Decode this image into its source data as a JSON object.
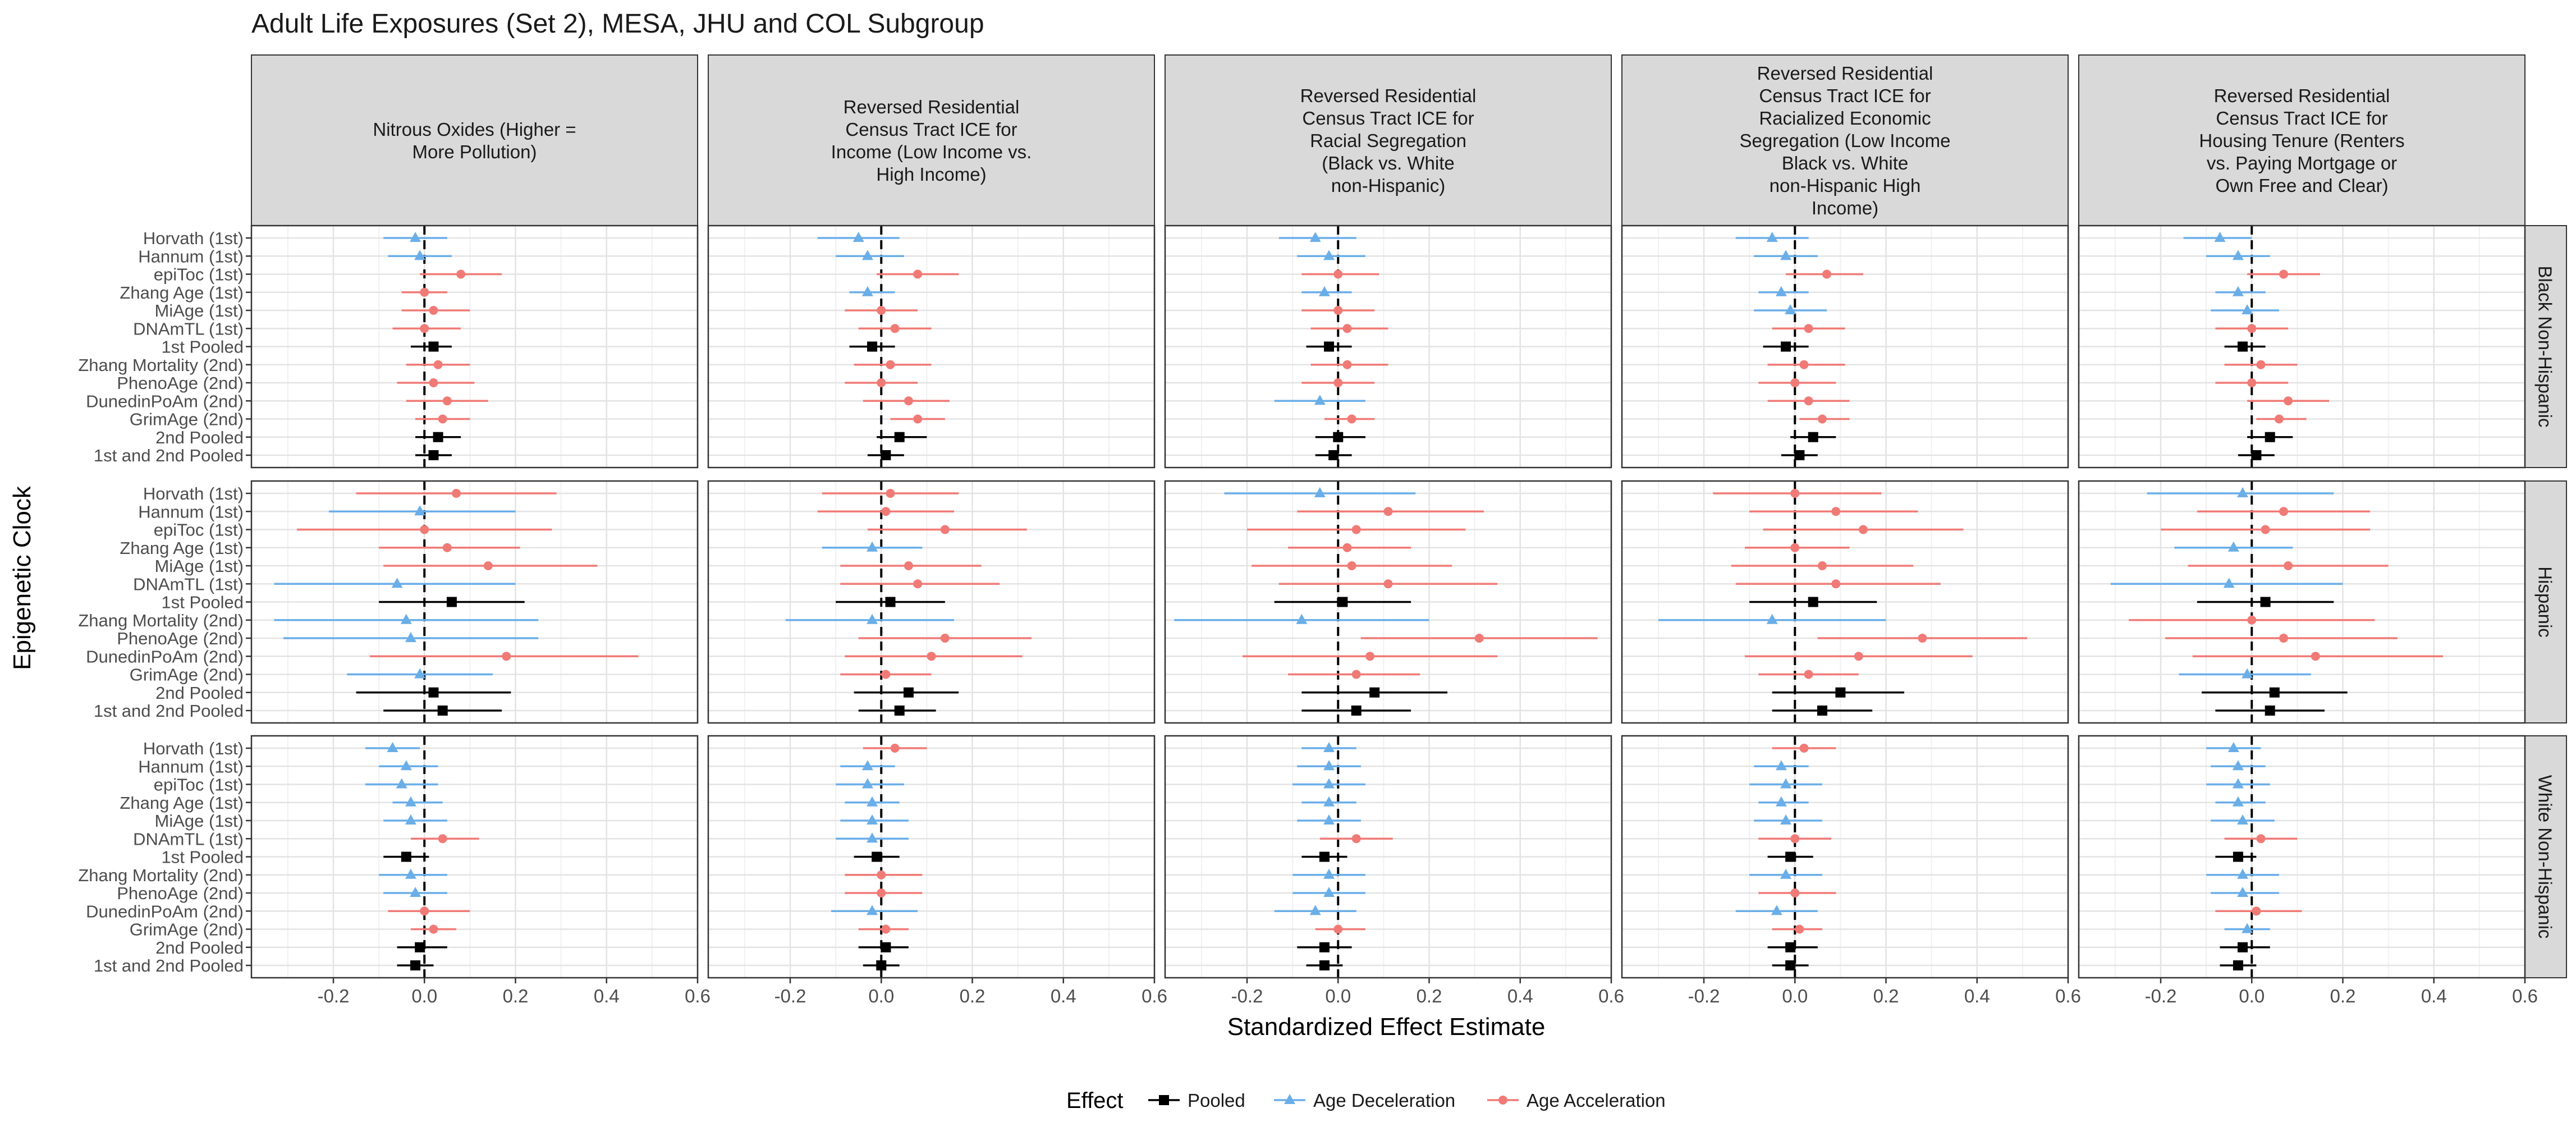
{
  "chart_data": {
    "type": "scatter",
    "title": "Adult Life Exposures (Set 2), MESA, JHU and COL Subgroup",
    "xlabel": "Standardized Effect Estimate",
    "ylabel": "Epigenetic Clock",
    "xlim": [
      -0.38,
      0.6
    ],
    "x_ticks": [
      -0.2,
      0.0,
      0.2,
      0.4,
      0.6
    ],
    "x_tick_labels": [
      "-0.2",
      "0.0",
      "0.2",
      "0.4",
      "0.6"
    ],
    "reference_line": 0,
    "grid": true,
    "legend": {
      "title": "Effect",
      "position": "bottom",
      "entries": [
        {
          "label": "Pooled",
          "color": "#000000",
          "shape": "square"
        },
        {
          "label": "Age Deceleration",
          "color": "#6aaee8",
          "shape": "triangle"
        },
        {
          "label": "Age Acceleration",
          "color": "#f07a76",
          "shape": "circle"
        }
      ]
    },
    "colors": {
      "Pooled": "#000000",
      "Age Deceleration": "#6aaee8",
      "Age Acceleration": "#f07a76"
    },
    "categories": [
      "Horvath (1st)",
      "Hannum (1st)",
      "epiToc (1st)",
      "Zhang Age (1st)",
      "MiAge (1st)",
      "DNAmTL (1st)",
      "1st Pooled",
      "Zhang Mortality (2nd)",
      "PhenoAge (2nd)",
      "DunedinPoAm (2nd)",
      "GrimAge (2nd)",
      "2nd Pooled",
      "1st and 2nd Pooled"
    ],
    "facet_columns": [
      {
        "lines": [
          "Nitrous Oxides (Higher =",
          "More Pollution)"
        ]
      },
      {
        "lines": [
          "Reversed Residential",
          "Census Tract ICE for",
          "Income (Low Income vs.",
          "High Income)"
        ]
      },
      {
        "lines": [
          "Reversed Residential",
          "Census Tract ICE for",
          "Racial Segregation",
          "(Black vs. White",
          "non-Hispanic)"
        ]
      },
      {
        "lines": [
          "Reversed Residential",
          "Census Tract ICE for",
          "Racialized Economic",
          "Segregation (Low Income",
          "Black vs. White",
          "non-Hispanic High",
          "Income)"
        ]
      },
      {
        "lines": [
          "Reversed Residential",
          "Census Tract ICE for",
          "Housing Tenure (Renters",
          "vs. Paying Mortgage or",
          "Own Free and Clear)"
        ]
      }
    ],
    "facet_rows": [
      "Black Non-Hispanic",
      "Hispanic",
      "White Non-Hispanic"
    ],
    "panels": [
      [
        [
          [
            -0.02,
            -0.09,
            0.05
          ],
          [
            -0.01,
            -0.08,
            0.06
          ],
          [
            0.08,
            -0.01,
            0.17
          ],
          [
            0.0,
            -0.05,
            0.05
          ],
          [
            0.02,
            -0.05,
            0.1
          ],
          [
            0.0,
            -0.07,
            0.08
          ],
          [
            0.02,
            -0.03,
            0.06
          ],
          [
            0.03,
            -0.04,
            0.1
          ],
          [
            0.02,
            -0.06,
            0.11
          ],
          [
            0.05,
            -0.04,
            0.14
          ],
          [
            0.04,
            -0.02,
            0.1
          ],
          [
            0.03,
            -0.02,
            0.08
          ],
          [
            0.02,
            -0.02,
            0.06
          ]
        ],
        [
          [
            0.07,
            -0.15,
            0.29
          ],
          [
            -0.01,
            -0.21,
            0.2
          ],
          [
            0.0,
            -0.28,
            0.28
          ],
          [
            0.05,
            -0.1,
            0.21
          ],
          [
            0.14,
            -0.09,
            0.38
          ],
          [
            -0.06,
            -0.33,
            0.2
          ],
          [
            0.06,
            -0.1,
            0.22
          ],
          [
            -0.04,
            -0.33,
            0.25
          ],
          [
            -0.03,
            -0.31,
            0.25
          ],
          [
            0.18,
            -0.12,
            0.47
          ],
          [
            -0.01,
            -0.17,
            0.15
          ],
          [
            0.02,
            -0.15,
            0.19
          ],
          [
            0.04,
            -0.09,
            0.17
          ]
        ],
        [
          [
            -0.07,
            -0.13,
            -0.01
          ],
          [
            -0.04,
            -0.1,
            0.03
          ],
          [
            -0.05,
            -0.13,
            0.03
          ],
          [
            -0.03,
            -0.07,
            0.04
          ],
          [
            -0.03,
            -0.09,
            0.05
          ],
          [
            0.04,
            -0.03,
            0.12
          ],
          [
            -0.04,
            -0.09,
            0.01
          ],
          [
            -0.03,
            -0.1,
            0.05
          ],
          [
            -0.02,
            -0.09,
            0.05
          ],
          [
            0.0,
            -0.08,
            0.1
          ],
          [
            0.02,
            -0.03,
            0.07
          ],
          [
            -0.01,
            -0.06,
            0.05
          ],
          [
            -0.02,
            -0.06,
            0.02
          ]
        ]
      ],
      [
        [
          [
            -0.05,
            -0.14,
            0.04
          ],
          [
            -0.03,
            -0.1,
            0.05
          ],
          [
            0.08,
            -0.01,
            0.17
          ],
          [
            -0.03,
            -0.07,
            0.03
          ],
          [
            0.0,
            -0.08,
            0.08
          ],
          [
            0.03,
            -0.05,
            0.11
          ],
          [
            -0.02,
            -0.07,
            0.03
          ],
          [
            0.02,
            -0.06,
            0.11
          ],
          [
            0.0,
            -0.08,
            0.08
          ],
          [
            0.06,
            -0.04,
            0.15
          ],
          [
            0.08,
            0.02,
            0.14
          ],
          [
            0.04,
            -0.01,
            0.1
          ],
          [
            0.01,
            -0.03,
            0.05
          ]
        ],
        [
          [
            0.02,
            -0.13,
            0.17
          ],
          [
            0.01,
            -0.14,
            0.16
          ],
          [
            0.14,
            -0.03,
            0.32
          ],
          [
            -0.02,
            -0.13,
            0.09
          ],
          [
            0.06,
            -0.09,
            0.22
          ],
          [
            0.08,
            -0.09,
            0.26
          ],
          [
            0.02,
            -0.1,
            0.14
          ],
          [
            -0.02,
            -0.21,
            0.16
          ],
          [
            0.14,
            -0.05,
            0.33
          ],
          [
            0.11,
            -0.08,
            0.31
          ],
          [
            0.01,
            -0.09,
            0.11
          ],
          [
            0.06,
            -0.06,
            0.17
          ],
          [
            0.04,
            -0.05,
            0.12
          ]
        ],
        [
          [
            0.03,
            -0.04,
            0.1
          ],
          [
            -0.03,
            -0.09,
            0.03
          ],
          [
            -0.03,
            -0.1,
            0.05
          ],
          [
            -0.02,
            -0.08,
            0.04
          ],
          [
            -0.02,
            -0.09,
            0.06
          ],
          [
            -0.02,
            -0.1,
            0.06
          ],
          [
            -0.01,
            -0.06,
            0.04
          ],
          [
            0.0,
            -0.08,
            0.09
          ],
          [
            0.0,
            -0.08,
            0.09
          ],
          [
            -0.02,
            -0.11,
            0.08
          ],
          [
            0.01,
            -0.05,
            0.06
          ],
          [
            0.01,
            -0.05,
            0.06
          ],
          [
            0.0,
            -0.04,
            0.04
          ]
        ]
      ],
      [
        [
          [
            -0.05,
            -0.13,
            0.04
          ],
          [
            -0.02,
            -0.09,
            0.06
          ],
          [
            0.0,
            -0.08,
            0.09
          ],
          [
            -0.03,
            -0.08,
            0.03
          ],
          [
            0.0,
            -0.08,
            0.08
          ],
          [
            0.02,
            -0.06,
            0.11
          ],
          [
            -0.02,
            -0.07,
            0.03
          ],
          [
            0.02,
            -0.06,
            0.11
          ],
          [
            0.0,
            -0.08,
            0.08
          ],
          [
            -0.04,
            -0.14,
            0.06
          ],
          [
            0.03,
            -0.03,
            0.08
          ],
          [
            0.0,
            -0.05,
            0.06
          ],
          [
            -0.01,
            -0.05,
            0.03
          ]
        ],
        [
          [
            -0.04,
            -0.25,
            0.17
          ],
          [
            0.11,
            -0.09,
            0.32
          ],
          [
            0.04,
            -0.2,
            0.28
          ],
          [
            0.02,
            -0.11,
            0.16
          ],
          [
            0.03,
            -0.19,
            0.25
          ],
          [
            0.11,
            -0.13,
            0.35
          ],
          [
            0.01,
            -0.14,
            0.16
          ],
          [
            -0.08,
            -0.36,
            0.2
          ],
          [
            0.31,
            0.05,
            0.57
          ],
          [
            0.07,
            -0.21,
            0.35
          ],
          [
            0.04,
            -0.11,
            0.18
          ],
          [
            0.08,
            -0.08,
            0.24
          ],
          [
            0.04,
            -0.08,
            0.16
          ]
        ],
        [
          [
            -0.02,
            -0.08,
            0.04
          ],
          [
            -0.02,
            -0.09,
            0.05
          ],
          [
            -0.02,
            -0.1,
            0.06
          ],
          [
            -0.02,
            -0.08,
            0.04
          ],
          [
            -0.02,
            -0.09,
            0.05
          ],
          [
            0.04,
            -0.04,
            0.12
          ],
          [
            -0.03,
            -0.08,
            0.02
          ],
          [
            -0.02,
            -0.1,
            0.06
          ],
          [
            -0.02,
            -0.1,
            0.06
          ],
          [
            -0.05,
            -0.14,
            0.04
          ],
          [
            0.0,
            -0.05,
            0.06
          ],
          [
            -0.03,
            -0.09,
            0.03
          ],
          [
            -0.03,
            -0.07,
            0.01
          ]
        ]
      ],
      [
        [
          [
            -0.05,
            -0.13,
            0.03
          ],
          [
            -0.02,
            -0.09,
            0.05
          ],
          [
            0.07,
            -0.02,
            0.15
          ],
          [
            -0.03,
            -0.08,
            0.03
          ],
          [
            -0.01,
            -0.09,
            0.07
          ],
          [
            0.03,
            -0.05,
            0.11
          ],
          [
            -0.02,
            -0.07,
            0.03
          ],
          [
            0.02,
            -0.06,
            0.11
          ],
          [
            0.0,
            -0.08,
            0.09
          ],
          [
            0.03,
            -0.06,
            0.12
          ],
          [
            0.06,
            0.01,
            0.12
          ],
          [
            0.04,
            -0.01,
            0.09
          ],
          [
            0.01,
            -0.03,
            0.05
          ]
        ],
        [
          [
            0.0,
            -0.18,
            0.19
          ],
          [
            0.09,
            -0.1,
            0.27
          ],
          [
            0.15,
            -0.07,
            0.37
          ],
          [
            0.0,
            -0.11,
            0.12
          ],
          [
            0.06,
            -0.14,
            0.26
          ],
          [
            0.09,
            -0.13,
            0.32
          ],
          [
            0.04,
            -0.1,
            0.18
          ],
          [
            -0.05,
            -0.3,
            0.2
          ],
          [
            0.28,
            0.05,
            0.51
          ],
          [
            0.14,
            -0.11,
            0.39
          ],
          [
            0.03,
            -0.08,
            0.14
          ],
          [
            0.1,
            -0.05,
            0.24
          ],
          [
            0.06,
            -0.05,
            0.17
          ]
        ],
        [
          [
            0.02,
            -0.05,
            0.09
          ],
          [
            -0.03,
            -0.09,
            0.03
          ],
          [
            -0.02,
            -0.1,
            0.06
          ],
          [
            -0.03,
            -0.08,
            0.03
          ],
          [
            -0.02,
            -0.09,
            0.06
          ],
          [
            0.0,
            -0.08,
            0.08
          ],
          [
            -0.01,
            -0.06,
            0.04
          ],
          [
            -0.02,
            -0.1,
            0.06
          ],
          [
            0.0,
            -0.08,
            0.09
          ],
          [
            -0.04,
            -0.13,
            0.05
          ],
          [
            0.01,
            -0.05,
            0.06
          ],
          [
            -0.01,
            -0.06,
            0.05
          ],
          [
            -0.01,
            -0.05,
            0.03
          ]
        ]
      ],
      [
        [
          [
            -0.07,
            -0.15,
            0.0
          ],
          [
            -0.03,
            -0.1,
            0.04
          ],
          [
            0.07,
            -0.01,
            0.15
          ],
          [
            -0.03,
            -0.08,
            0.03
          ],
          [
            -0.01,
            -0.09,
            0.06
          ],
          [
            0.0,
            -0.08,
            0.08
          ],
          [
            -0.02,
            -0.06,
            0.03
          ],
          [
            0.02,
            -0.06,
            0.1
          ],
          [
            0.0,
            -0.08,
            0.08
          ],
          [
            0.08,
            -0.01,
            0.17
          ],
          [
            0.06,
            0.01,
            0.12
          ],
          [
            0.04,
            -0.01,
            0.09
          ],
          [
            0.01,
            -0.03,
            0.05
          ]
        ],
        [
          [
            -0.02,
            -0.23,
            0.18
          ],
          [
            0.07,
            -0.12,
            0.26
          ],
          [
            0.03,
            -0.2,
            0.26
          ],
          [
            -0.04,
            -0.17,
            0.09
          ],
          [
            0.08,
            -0.14,
            0.3
          ],
          [
            -0.05,
            -0.31,
            0.2
          ],
          [
            0.03,
            -0.12,
            0.18
          ],
          [
            0.0,
            -0.27,
            0.27
          ],
          [
            0.07,
            -0.19,
            0.32
          ],
          [
            0.14,
            -0.13,
            0.42
          ],
          [
            -0.01,
            -0.16,
            0.13
          ],
          [
            0.05,
            -0.11,
            0.21
          ],
          [
            0.04,
            -0.08,
            0.16
          ]
        ],
        [
          [
            -0.04,
            -0.1,
            0.02
          ],
          [
            -0.03,
            -0.09,
            0.03
          ],
          [
            -0.03,
            -0.1,
            0.04
          ],
          [
            -0.03,
            -0.08,
            0.03
          ],
          [
            -0.02,
            -0.09,
            0.05
          ],
          [
            0.02,
            -0.06,
            0.1
          ],
          [
            -0.03,
            -0.08,
            0.01
          ],
          [
            -0.02,
            -0.1,
            0.06
          ],
          [
            -0.02,
            -0.09,
            0.06
          ],
          [
            0.01,
            -0.08,
            0.11
          ],
          [
            -0.01,
            -0.06,
            0.04
          ],
          [
            -0.02,
            -0.07,
            0.04
          ],
          [
            -0.03,
            -0.07,
            0.01
          ]
        ]
      ]
    ]
  }
}
